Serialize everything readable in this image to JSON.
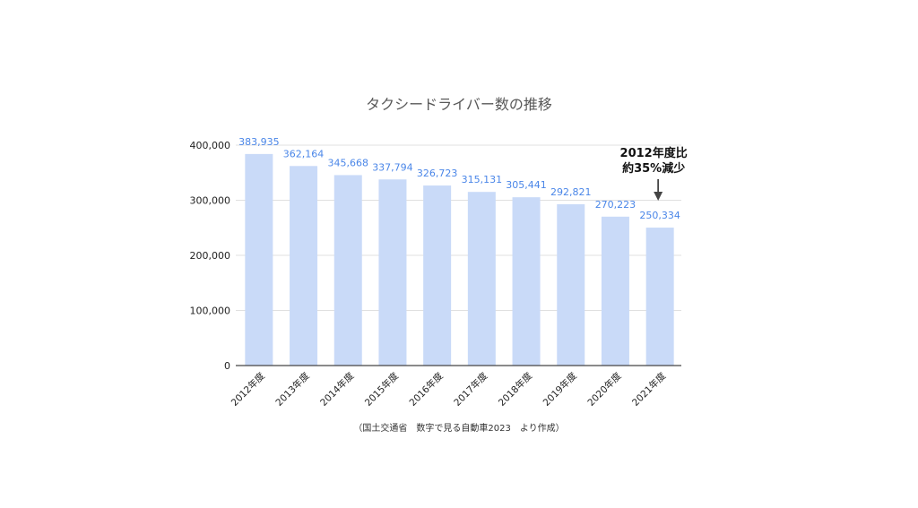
{
  "chart_data": {
    "type": "bar",
    "title": "タクシードライバー数の推移",
    "categories": [
      "2012年度",
      "2013年度",
      "2014年度",
      "2015年度",
      "2016年度",
      "2017年度",
      "2018年度",
      "2019年度",
      "2020年度",
      "2021年度"
    ],
    "values": [
      383935,
      362164,
      345668,
      337794,
      326723,
      315131,
      305441,
      292821,
      270223,
      250334
    ],
    "data_labels": [
      "383,935",
      "362,164",
      "345,668",
      "337,794",
      "326,723",
      "315,131",
      "305,441",
      "292,821",
      "270,223",
      "250,334"
    ],
    "yticks": [
      0,
      100000,
      200000,
      300000,
      400000
    ],
    "ytick_labels": [
      "0",
      "100,000",
      "200,000",
      "300,000",
      "400,000"
    ],
    "ylim": [
      0,
      400000
    ],
    "grid": true,
    "bar_color": "#c9daf8",
    "label_color": "#4a86e8",
    "annotation": {
      "line1": "2012年度比",
      "line2": "約35%減少",
      "target_category": "2021年度"
    },
    "source": "（国土交通省　数字で見る自動車2023　より作成）"
  }
}
